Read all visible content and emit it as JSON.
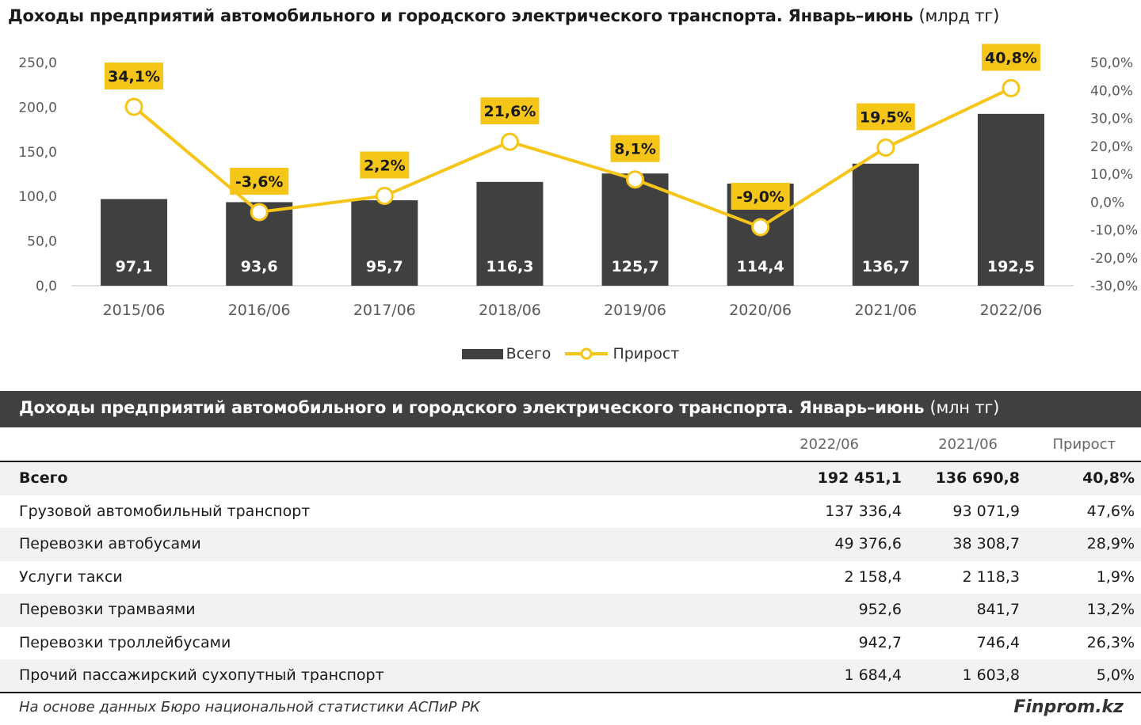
{
  "chart": {
    "title": "Доходы предприятий автомобильного и городского электрического транспорта. Январь–июнь",
    "unit": "(млрд тг)"
  },
  "chart_data": {
    "type": "bar",
    "categories": [
      "2015/06",
      "2016/06",
      "2017/06",
      "2018/06",
      "2019/06",
      "2020/06",
      "2021/06",
      "2022/06"
    ],
    "series": [
      {
        "name": "Всего",
        "type": "bar",
        "axis": "left",
        "values": [
          97.1,
          93.6,
          95.7,
          116.3,
          125.7,
          114.4,
          136.7,
          192.5
        ],
        "labels": [
          "97,1",
          "93,6",
          "95,7",
          "116,3",
          "125,7",
          "114,4",
          "136,7",
          "192,5"
        ],
        "color": "#404040"
      },
      {
        "name": "Прирост",
        "type": "line",
        "axis": "right",
        "values": [
          34.1,
          -3.6,
          2.2,
          21.6,
          8.1,
          -9.0,
          19.5,
          40.8
        ],
        "labels": [
          "34,1%",
          "-3,6%",
          "2,2%",
          "21,6%",
          "8,1%",
          "-9,0%",
          "19,5%",
          "40,8%"
        ],
        "color": "#F5C518"
      }
    ],
    "ylim": [
      0,
      250
    ],
    "y_ticks": [
      "0,0",
      "50,0",
      "100,0",
      "150,0",
      "200,0",
      "250,0"
    ],
    "y2lim": [
      -30,
      50
    ],
    "y2_ticks": [
      "-30,0%",
      "-20,0%",
      "-10,0%",
      "0,0%",
      "10,0%",
      "20,0%",
      "30,0%",
      "40,0%",
      "50,0%"
    ],
    "grid": false,
    "legend": "bottom"
  },
  "legend": {
    "bar": "Всего",
    "line": "Прирост"
  },
  "table": {
    "title": "Доходы предприятий автомобильного и городского электрического транспорта. Январь–июнь",
    "unit": "(млн тг)",
    "columns": [
      "2022/06",
      "2021/06",
      "Прирост"
    ],
    "rows": [
      {
        "name": "Всего",
        "a": "192 451,1",
        "b": "136 690,8",
        "c": "40,8%"
      },
      {
        "name": "Грузовой автомобильный транспорт",
        "a": "137 336,4",
        "b": "93 071,9",
        "c": "47,6%"
      },
      {
        "name": "Перевозки автобусами",
        "a": "49 376,6",
        "b": "38 308,7",
        "c": "28,9%"
      },
      {
        "name": "Услуги такси",
        "a": "2 158,4",
        "b": "2 118,3",
        "c": "1,9%"
      },
      {
        "name": "Перевозки трамваями",
        "a": "952,6",
        "b": "841,7",
        "c": "13,2%"
      },
      {
        "name": "Перевозки троллейбусами",
        "a": "942,7",
        "b": "746,4",
        "c": "26,3%"
      },
      {
        "name": "Прочий пассажирский сухопутный транспорт",
        "a": "1 684,4",
        "b": "1 603,8",
        "c": "5,0%"
      }
    ]
  },
  "footer": {
    "source": "На основе данных Бюро национальной статистики АСПиР РК",
    "brand": "Finprom.kz"
  }
}
